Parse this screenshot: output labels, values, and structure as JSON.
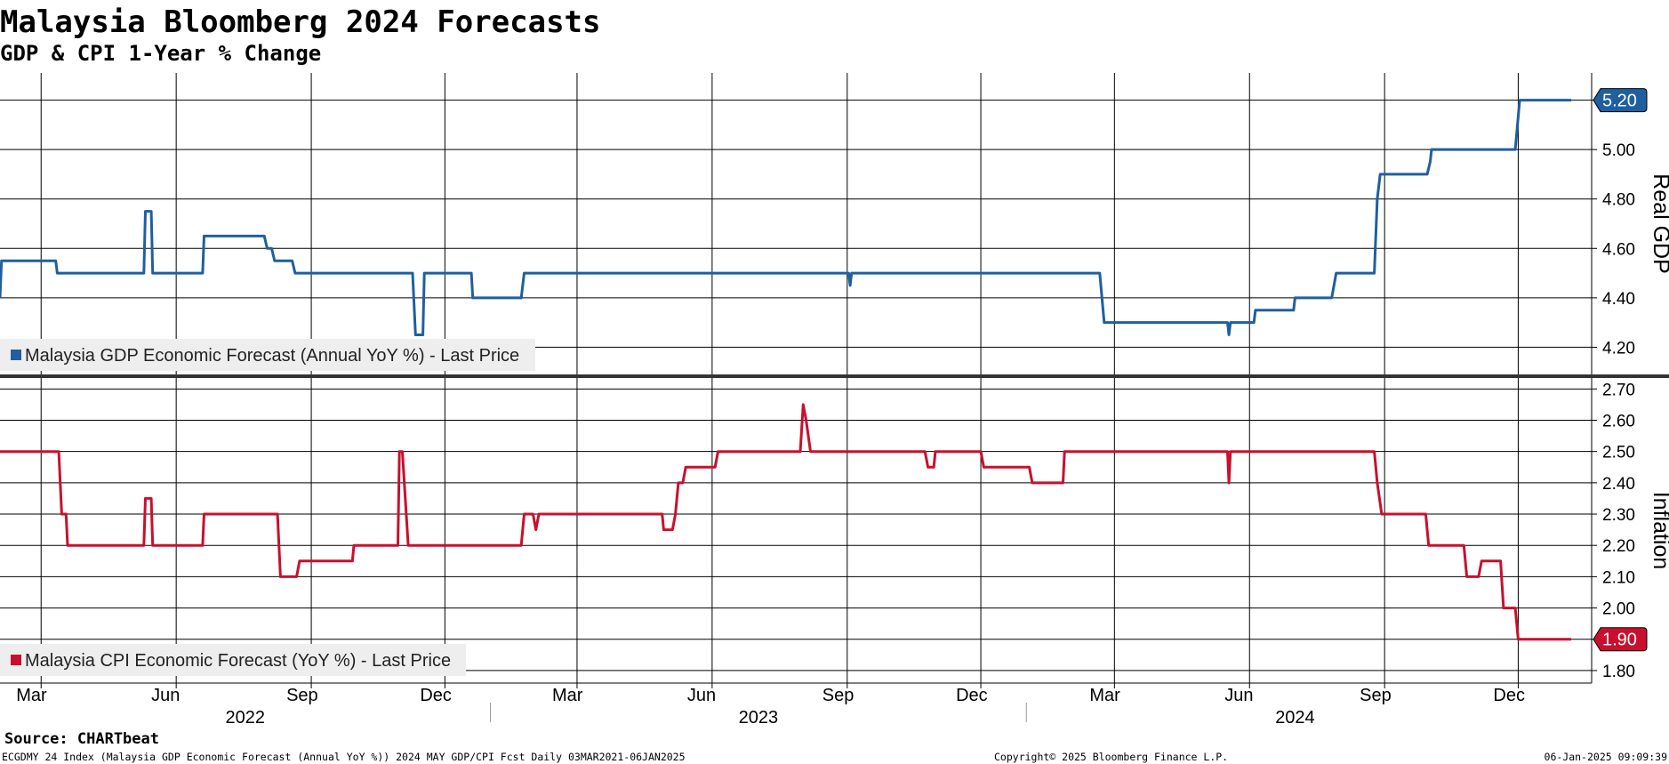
{
  "header": {
    "title": "Malaysia Bloomberg 2024 Forecasts",
    "subtitle": "GDP & CPI 1-Year % Change"
  },
  "footer": {
    "source": "Source: CHARTbeat",
    "security": "ECGDMY 24 Index (Malaysia GDP Economic Forecast (Annual YoY %)) 2024 MAY GDP/CPI Fcst  Daily 03MAR2021-06JAN2025",
    "copyright": "Copyright© 2025 Bloomberg Finance L.P.",
    "timestamp": "06-Jan-2025 09:09:39"
  },
  "colors": {
    "gdp": "#1f5fa0",
    "cpi": "#c8102e",
    "grid": "#000000",
    "legend_bg": "#eeeeee"
  },
  "chart_data": [
    {
      "type": "line",
      "name": "gdp-panel",
      "series": [
        {
          "name": "Malaysia GDP Economic Forecast (Annual YoY %) - Last Price",
          "last_value_label": "5.20",
          "points": [
            [
              "2022-02-01",
              4.4
            ],
            [
              "2022-02-02",
              4.55
            ],
            [
              "2022-03-11",
              4.55
            ],
            [
              "2022-03-12",
              4.5
            ],
            [
              "2022-05-10",
              4.5
            ],
            [
              "2022-05-11",
              4.75
            ],
            [
              "2022-05-15",
              4.75
            ],
            [
              "2022-05-16",
              4.5
            ],
            [
              "2022-06-19",
              4.5
            ],
            [
              "2022-06-20",
              4.65
            ],
            [
              "2022-07-31",
              4.65
            ],
            [
              "2022-08-02",
              4.6
            ],
            [
              "2022-08-05",
              4.6
            ],
            [
              "2022-08-07",
              4.55
            ],
            [
              "2022-08-19",
              4.55
            ],
            [
              "2022-08-21",
              4.5
            ],
            [
              "2022-11-09",
              4.5
            ],
            [
              "2022-11-11",
              4.25
            ],
            [
              "2022-11-16",
              4.25
            ],
            [
              "2022-11-17",
              4.5
            ],
            [
              "2022-12-19",
              4.5
            ],
            [
              "2022-12-20",
              4.4
            ],
            [
              "2023-01-22",
              4.4
            ],
            [
              "2023-01-24",
              4.5
            ],
            [
              "2023-09-02",
              4.5
            ],
            [
              "2023-09-03",
              4.45
            ],
            [
              "2023-09-04",
              4.5
            ],
            [
              "2024-02-20",
              4.5
            ],
            [
              "2024-02-23",
              4.3
            ],
            [
              "2024-05-17",
              4.3
            ],
            [
              "2024-05-18",
              4.25
            ],
            [
              "2024-05-19",
              4.3
            ],
            [
              "2024-06-04",
              4.3
            ],
            [
              "2024-06-05",
              4.35
            ],
            [
              "2024-07-01",
              4.35
            ],
            [
              "2024-07-02",
              4.4
            ],
            [
              "2024-07-27",
              4.4
            ],
            [
              "2024-07-30",
              4.5
            ],
            [
              "2024-08-25",
              4.5
            ],
            [
              "2024-08-27",
              4.8
            ],
            [
              "2024-08-29",
              4.9
            ],
            [
              "2024-09-30",
              4.9
            ],
            [
              "2024-10-02",
              4.95
            ],
            [
              "2024-10-03",
              5.0
            ],
            [
              "2024-11-29",
              5.0
            ],
            [
              "2024-12-02",
              5.2
            ],
            [
              "2025-01-06",
              5.2
            ]
          ]
        }
      ],
      "y_ticks": [
        "4.20",
        "4.40",
        "4.60",
        "4.80",
        "5.00",
        "5.20"
      ],
      "ylim": [
        4.09,
        5.31
      ],
      "ylabel": "Real GDP",
      "grid": true,
      "legend": "bottom-left"
    },
    {
      "type": "line",
      "name": "cpi-panel",
      "series": [
        {
          "name": "Malaysia CPI Economic Forecast (YoY %) - Last Price",
          "last_value_label": "1.90",
          "points": [
            [
              "2022-02-01",
              2.5
            ],
            [
              "2022-03-13",
              2.5
            ],
            [
              "2022-03-15",
              2.3
            ],
            [
              "2022-03-18",
              2.3
            ],
            [
              "2022-03-19",
              2.2
            ],
            [
              "2022-05-10",
              2.2
            ],
            [
              "2022-05-11",
              2.35
            ],
            [
              "2022-05-15",
              2.35
            ],
            [
              "2022-05-16",
              2.2
            ],
            [
              "2022-06-19",
              2.2
            ],
            [
              "2022-06-20",
              2.3
            ],
            [
              "2022-08-09",
              2.3
            ],
            [
              "2022-08-11",
              2.1
            ],
            [
              "2022-08-22",
              2.1
            ],
            [
              "2022-08-24",
              2.15
            ],
            [
              "2022-09-29",
              2.15
            ],
            [
              "2022-09-30",
              2.2
            ],
            [
              "2022-10-30",
              2.2
            ],
            [
              "2022-10-31",
              2.5
            ],
            [
              "2022-11-02",
              2.5
            ],
            [
              "2022-11-06",
              2.2
            ],
            [
              "2023-01-22",
              2.2
            ],
            [
              "2023-01-24",
              2.3
            ],
            [
              "2023-01-30",
              2.3
            ],
            [
              "2023-02-01",
              2.25
            ],
            [
              "2023-02-03",
              2.3
            ],
            [
              "2023-04-28",
              2.3
            ],
            [
              "2023-04-29",
              2.25
            ],
            [
              "2023-05-05",
              2.25
            ],
            [
              "2023-05-07",
              2.3
            ],
            [
              "2023-05-09",
              2.4
            ],
            [
              "2023-05-12",
              2.4
            ],
            [
              "2023-05-14",
              2.45
            ],
            [
              "2023-06-03",
              2.45
            ],
            [
              "2023-06-05",
              2.5
            ],
            [
              "2023-07-31",
              2.5
            ],
            [
              "2023-08-02",
              2.65
            ],
            [
              "2023-08-04",
              2.6
            ],
            [
              "2023-08-07",
              2.5
            ],
            [
              "2023-10-24",
              2.5
            ],
            [
              "2023-10-26",
              2.45
            ],
            [
              "2023-10-30",
              2.45
            ],
            [
              "2023-10-31",
              2.5
            ],
            [
              "2023-12-01",
              2.5
            ],
            [
              "2023-12-03",
              2.45
            ],
            [
              "2024-01-03",
              2.45
            ],
            [
              "2024-01-05",
              2.4
            ],
            [
              "2024-01-26",
              2.4
            ],
            [
              "2024-01-27",
              2.5
            ],
            [
              "2024-05-17",
              2.5
            ],
            [
              "2024-05-18",
              2.4
            ],
            [
              "2024-05-19",
              2.5
            ],
            [
              "2024-08-25",
              2.5
            ],
            [
              "2024-08-27",
              2.4
            ],
            [
              "2024-08-30",
              2.3
            ],
            [
              "2024-09-29",
              2.3
            ],
            [
              "2024-10-01",
              2.2
            ],
            [
              "2024-10-25",
              2.2
            ],
            [
              "2024-10-27",
              2.1
            ],
            [
              "2024-11-04",
              2.1
            ],
            [
              "2024-11-06",
              2.15
            ],
            [
              "2024-11-19",
              2.15
            ],
            [
              "2024-11-21",
              2.0
            ],
            [
              "2024-11-29",
              2.0
            ],
            [
              "2024-12-01",
              1.9
            ],
            [
              "2025-01-06",
              1.9
            ]
          ]
        }
      ],
      "y_ticks": [
        "1.80",
        "1.90",
        "2.00",
        "2.10",
        "2.20",
        "2.30",
        "2.40",
        "2.50",
        "2.60",
        "2.70"
      ],
      "ylim": [
        1.76,
        2.735
      ],
      "ylabel": "Inflation",
      "grid": true,
      "legend": "bottom-left"
    }
  ],
  "x_axis": {
    "range": [
      "2022-02-01",
      "2025-01-20"
    ],
    "months": [
      {
        "date": "2022-03-01",
        "label": "Mar"
      },
      {
        "date": "2022-06-01",
        "label": "Jun"
      },
      {
        "date": "2022-09-01",
        "label": "Sep"
      },
      {
        "date": "2022-12-01",
        "label": "Dec"
      },
      {
        "date": "2023-03-01",
        "label": "Mar"
      },
      {
        "date": "2023-06-01",
        "label": "Jun"
      },
      {
        "date": "2023-09-01",
        "label": "Sep"
      },
      {
        "date": "2023-12-01",
        "label": "Dec"
      },
      {
        "date": "2024-03-01",
        "label": "Mar"
      },
      {
        "date": "2024-06-01",
        "label": "Jun"
      },
      {
        "date": "2024-09-01",
        "label": "Sep"
      },
      {
        "date": "2024-12-01",
        "label": "Dec"
      }
    ],
    "years": [
      {
        "label": "2022",
        "start": "2022-02-01",
        "end": "2023-01-01"
      },
      {
        "label": "2023",
        "start": "2023-01-01",
        "end": "2024-01-01"
      },
      {
        "label": "2024",
        "start": "2024-01-01",
        "end": "2025-01-01"
      }
    ]
  }
}
